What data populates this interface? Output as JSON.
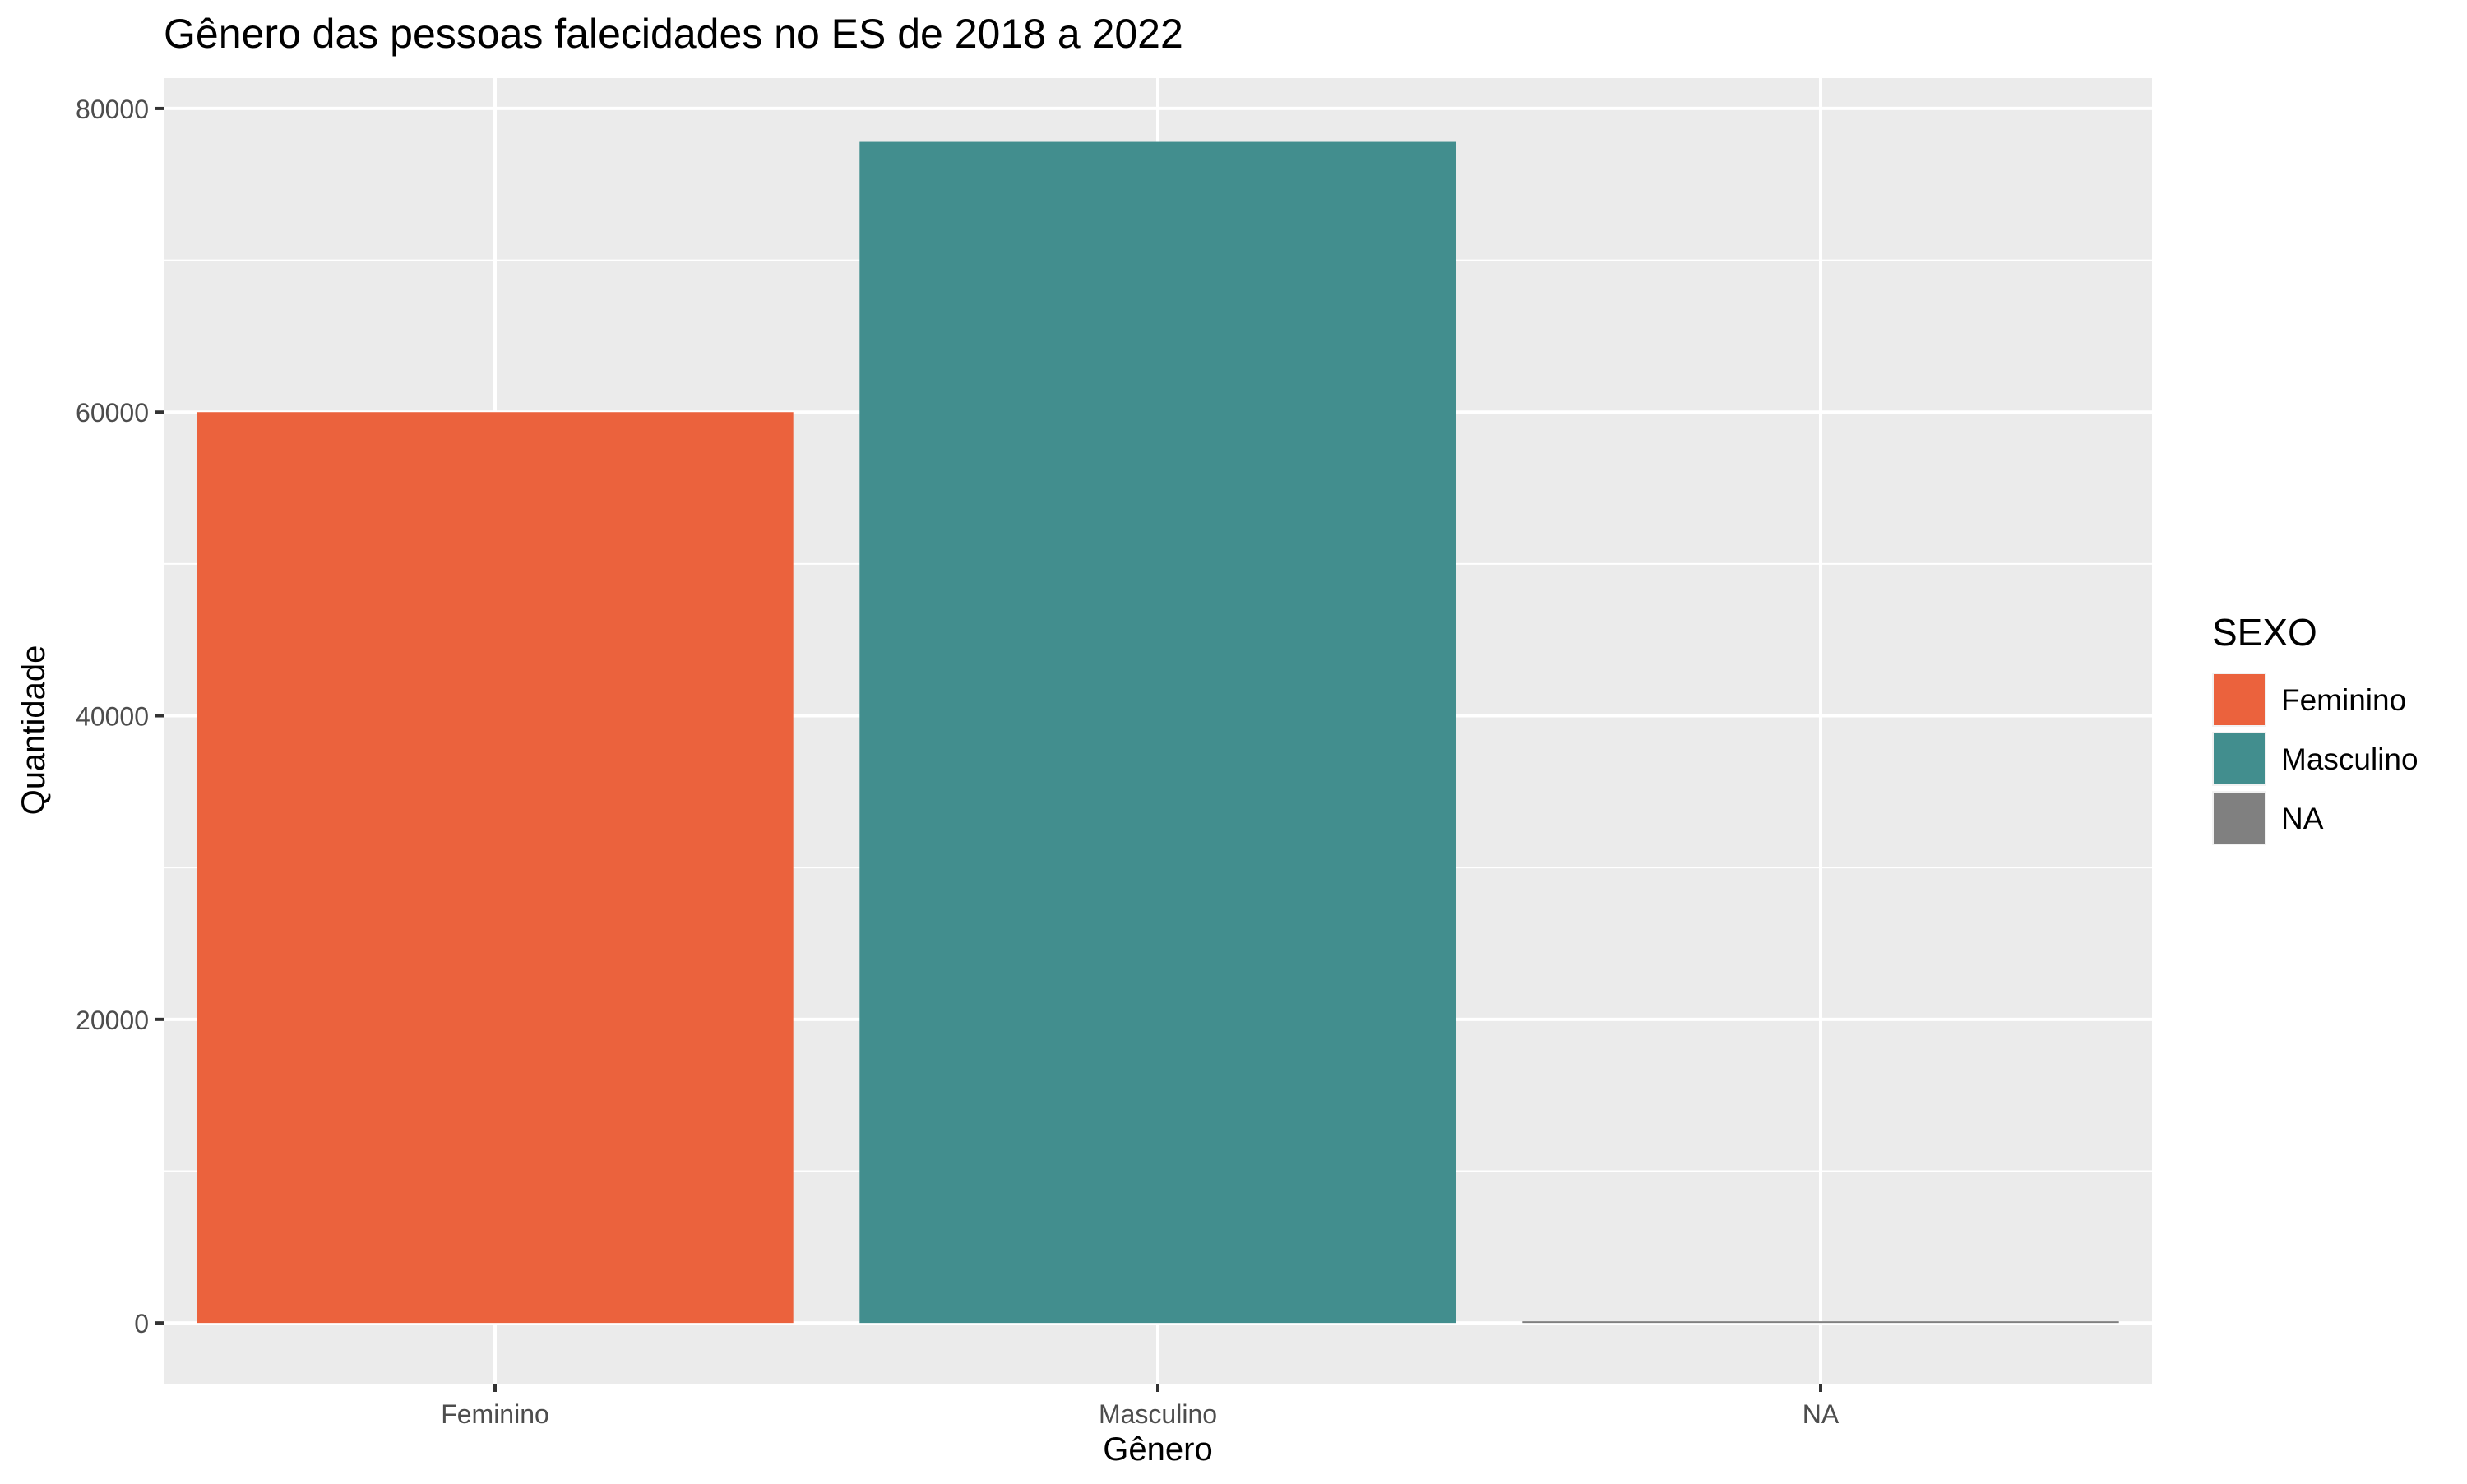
{
  "chart_data": {
    "type": "bar",
    "title": "Gênero das pessoas falecidades no ES de 2018 a 2022",
    "xlabel": "Gênero",
    "ylabel": "Quantidade",
    "categories": [
      "Feminino",
      "Masculino",
      "NA"
    ],
    "values": [
      60000,
      77800,
      60
    ],
    "colors": [
      "#EB623D",
      "#428E8E",
      "#808080"
    ],
    "ylim": [
      -4000,
      82000
    ],
    "yticks": [
      0,
      20000,
      40000,
      60000,
      80000
    ],
    "ytick_labels": [
      "0",
      "20000",
      "40000",
      "60000",
      "80000"
    ],
    "grid": true,
    "panel_background": "#EBEBEB",
    "legend": {
      "title": "SEXO",
      "position": "right",
      "entries": [
        "Feminino",
        "Masculino",
        "NA"
      ]
    }
  }
}
